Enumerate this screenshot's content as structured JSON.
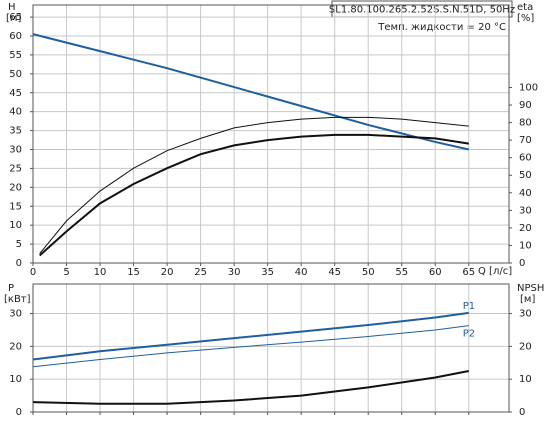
{
  "chart_data": [
    {
      "type": "line",
      "title": "SL1.80.100.265.2.52S.S.N.51D, 50Hz",
      "subtitle": "Темп. жидкости = 20 °C",
      "x_label": "Q [л/с]",
      "y_label": "H",
      "y_unit": "[м]",
      "y2_label": "eta",
      "y2_unit": "[%]",
      "xlim": [
        0,
        71
      ],
      "xticks": [
        0,
        5,
        10,
        15,
        20,
        25,
        30,
        35,
        40,
        45,
        50,
        55,
        60,
        65
      ],
      "show_xtick_labels": true,
      "ylim": [
        0,
        68.2
      ],
      "yticks": [
        0,
        5,
        10,
        15,
        20,
        25,
        30,
        35,
        40,
        45,
        50,
        55,
        60,
        65
      ],
      "y2lim": [
        0,
        147
      ],
      "y2ticks": [
        0,
        10,
        20,
        30,
        40,
        50,
        60,
        70,
        80,
        90,
        100
      ],
      "grid": true,
      "series": [
        {
          "name": "H",
          "color": "#1f5fa0",
          "line_width": 2,
          "x": [
            0,
            10,
            20,
            30,
            40,
            50,
            60,
            65
          ],
          "values": [
            60.5,
            56,
            51.5,
            46.5,
            41.5,
            36.5,
            32,
            30
          ]
        },
        {
          "name": "eta",
          "color": "#111111",
          "line_width": 1,
          "axis": "y2",
          "x": [
            1,
            5,
            10,
            15,
            20,
            25,
            30,
            35,
            40,
            45,
            50,
            55,
            60,
            65
          ],
          "values": [
            5.4,
            24,
            41,
            54,
            64,
            71,
            77,
            80,
            82,
            83,
            83,
            82,
            80,
            78
          ]
        },
        {
          "name": "eta",
          "color": "#111111",
          "line_width": 2,
          "axis": "y2",
          "x": [
            1,
            5,
            10,
            15,
            20,
            25,
            30,
            35,
            40,
            45,
            50,
            55,
            60,
            65
          ],
          "values": [
            4.3,
            18,
            34,
            45,
            54,
            62,
            67,
            70,
            72,
            73,
            73,
            72,
            71,
            68
          ]
        }
      ]
    },
    {
      "type": "line",
      "y_label": "P",
      "y_unit": "[кВт]",
      "y2_label": "NPSH",
      "y2_unit": "[м]",
      "xlim": [
        0,
        71
      ],
      "xticks": [
        0,
        5,
        10,
        15,
        20,
        25,
        30,
        35,
        40,
        45,
        50,
        55,
        60,
        65
      ],
      "show_xtick_labels": false,
      "ylim": [
        0,
        39
      ],
      "yticks": [
        0,
        10,
        20,
        30
      ],
      "y2lim": [
        0,
        39
      ],
      "y2ticks": [
        0,
        10,
        20,
        30
      ],
      "grid": true,
      "series": [
        {
          "name": "P1",
          "color": "#1f5fa0",
          "line_width": 2,
          "show_name": true,
          "x": [
            0,
            10,
            20,
            30,
            40,
            50,
            60,
            65
          ],
          "values": [
            16,
            18.5,
            20.5,
            22.5,
            24.5,
            26.5,
            28.8,
            30.2
          ]
        },
        {
          "name": "P2",
          "color": "#1f5fa0",
          "line_width": 1,
          "show_name": true,
          "x": [
            0,
            10,
            20,
            30,
            40,
            50,
            60,
            65
          ],
          "values": [
            13.8,
            16,
            18,
            19.7,
            21.3,
            23,
            25,
            26.3
          ]
        },
        {
          "name": "NPSH",
          "color": "#111111",
          "line_width": 2,
          "axis": "y2",
          "x": [
            0,
            10,
            20,
            30,
            40,
            50,
            60,
            65
          ],
          "values": [
            3,
            2.5,
            2.5,
            3.5,
            5,
            7.5,
            10.5,
            12.5
          ]
        }
      ]
    }
  ]
}
